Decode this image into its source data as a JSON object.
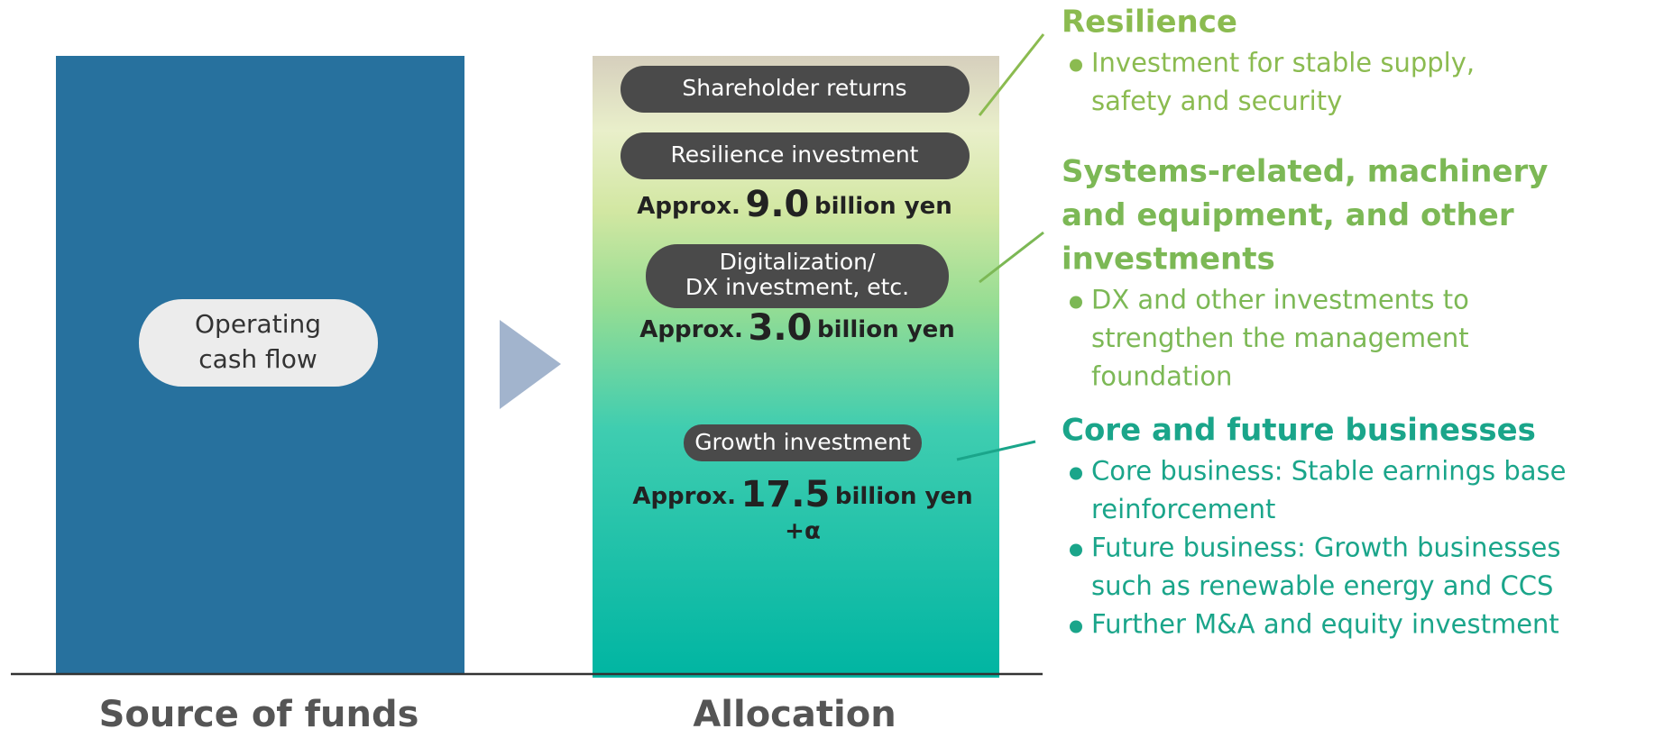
{
  "source": {
    "label": "Source of funds",
    "box_label": [
      "Operating",
      "cash flow"
    ]
  },
  "allocation": {
    "label": "Allocation",
    "items": [
      {
        "label": [
          "Shareholder returns"
        ]
      },
      {
        "label": [
          "Resilience investment"
        ],
        "amount": [
          "Approx.",
          "9.0",
          "billion yen"
        ]
      },
      {
        "label": [
          "Digitalization/",
          "DX investment, etc."
        ],
        "amount": [
          "Approx.",
          "3.0",
          "billion yen"
        ]
      },
      {
        "label": [
          "Growth investment"
        ],
        "amount": [
          "Approx.",
          "17.5",
          "billion yen"
        ],
        "extra": "+α"
      }
    ]
  },
  "sections": [
    {
      "heading": [
        "Resilience"
      ],
      "bullets": [
        [
          "Investment for stable supply,",
          "safety and security"
        ]
      ]
    },
    {
      "heading": [
        "Systems-related, machinery",
        "and equipment, and other",
        "investments"
      ],
      "bullets": [
        [
          "DX and other investments to",
          "strengthen the management",
          "foundation"
        ]
      ]
    },
    {
      "heading": [
        "Core and future businesses"
      ],
      "bullets": [
        [
          "Core business: Stable earnings base",
          "reinforcement"
        ],
        [
          "Future business: Growth businesses",
          "such as renewable energy and CCS"
        ],
        [
          "Further M&A and equity investment"
        ]
      ]
    }
  ]
}
